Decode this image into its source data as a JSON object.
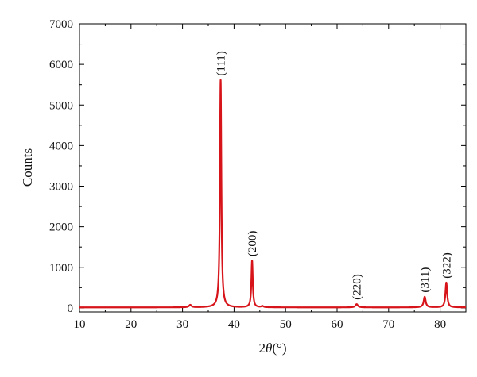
{
  "chart_data": {
    "type": "line",
    "title": "",
    "xlabel_prefix": "2",
    "xlabel_theta": "θ",
    "xlabel_suffix": "(°)",
    "ylabel": "Counts",
    "xlim": [
      10,
      85
    ],
    "ylim": [
      -100,
      7000
    ],
    "xticks": [
      10,
      20,
      30,
      40,
      50,
      60,
      70,
      80
    ],
    "yticks": [
      0,
      1000,
      2000,
      3000,
      4000,
      5000,
      6000,
      7000
    ],
    "grid": false,
    "line_color": "#d7141a",
    "baseline": 12,
    "peaks": [
      {
        "x": 31.5,
        "y": 60,
        "width": 0.35
      },
      {
        "x": 37.4,
        "y": 5600,
        "width": 0.2
      },
      {
        "x": 43.5,
        "y": 1150,
        "width": 0.2
      },
      {
        "x": 45.5,
        "y": 30,
        "width": 0.3
      },
      {
        "x": 63.8,
        "y": 80,
        "width": 0.35
      },
      {
        "x": 77.0,
        "y": 260,
        "width": 0.3
      },
      {
        "x": 81.2,
        "y": 610,
        "width": 0.25
      }
    ],
    "annotations": [
      {
        "text": "(111)",
        "x": 37.4,
        "y": 5600
      },
      {
        "text": "(200)",
        "x": 43.5,
        "y": 1150
      },
      {
        "text": "(220)",
        "x": 63.8,
        "y": 80
      },
      {
        "text": "(311)",
        "x": 77.0,
        "y": 260
      },
      {
        "text": "(322)",
        "x": 81.2,
        "y": 610
      }
    ]
  }
}
